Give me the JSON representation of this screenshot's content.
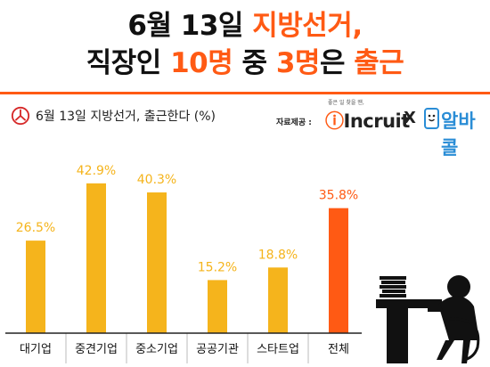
{
  "header": {
    "line1_a": "6월 13일 ",
    "line1_b": "지방선거,",
    "line2_a": "직장인 ",
    "line2_b": "10명",
    "line2_c": " 중 ",
    "line2_d": "3명",
    "line2_e": "은 ",
    "line2_f": "출근"
  },
  "subtitle": "6월 13일 지방선거, 출근한다 (%)",
  "source": {
    "label": "자료제공 :",
    "tagline": "좋은 일 찾을 땐,",
    "brand1": "Incruit",
    "separator": "X",
    "brand2": "알바콜"
  },
  "colors": {
    "accent": "#ff5a14",
    "bar": "#f5b41c",
    "total_bar": "#ff5a14",
    "brand2": "#2a8dd6"
  },
  "chart_data": {
    "type": "bar",
    "categories": [
      "대기업",
      "중견기업",
      "중소기업",
      "공공기관",
      "스타트업",
      "전체"
    ],
    "values": [
      26.5,
      42.9,
      40.3,
      15.2,
      18.8,
      35.8
    ],
    "value_labels": [
      "26.5%",
      "42.9%",
      "40.3%",
      "15.2%",
      "18.8%",
      "35.8%"
    ],
    "highlight_index": 5,
    "ylim": [
      0,
      50
    ],
    "grid": false,
    "title": "6월 13일 지방선거, 출근한다 (%)"
  }
}
